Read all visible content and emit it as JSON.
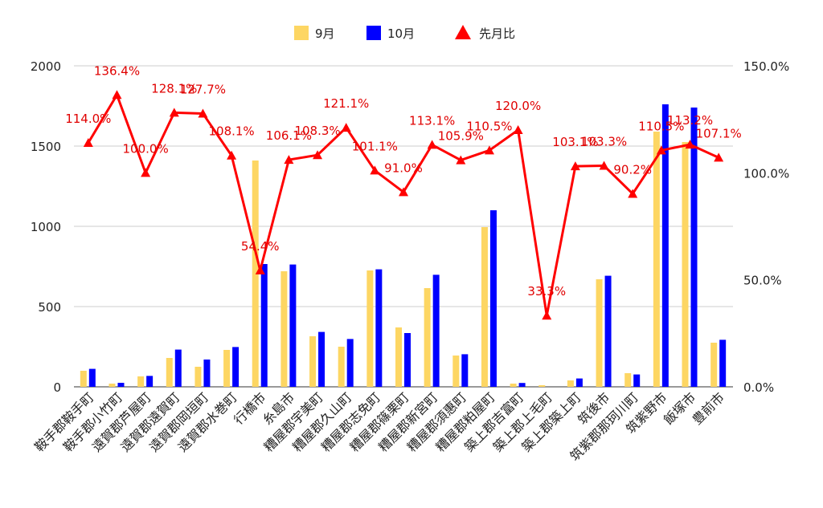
{
  "chart_data": {
    "type": "bar",
    "title": "",
    "xlabel": "",
    "ylabel": "",
    "categories": [
      "鞍手郡鞍手町",
      "鞍手郡小竹町",
      "遠賀郡芦屋町",
      "遠賀郡遠賀町",
      "遠賀郡岡垣町",
      "遠賀郡水巻町",
      "行橋市",
      "糸島市",
      "糟屋郡宇美町",
      "糟屋郡久山町",
      "糟屋郡志免町",
      "糟屋郡篠栗町",
      "糟屋郡新宮町",
      "糟屋郡須惠町",
      "糟屋郡粕屋町",
      "築上郡吉富町",
      "築上郡上毛町",
      "築上郡築上町",
      "筑後市",
      "筑紫郡那珂川町",
      "筑紫野市",
      "飯塚市",
      "豊前市"
    ],
    "series": [
      {
        "name": "9月",
        "type": "bar",
        "axis": "left",
        "color": "#fdd663",
        "values": [
          100,
          20,
          65,
          180,
          125,
          230,
          1410,
          720,
          315,
          250,
          725,
          370,
          615,
          195,
          995,
          20,
          10,
          40,
          670,
          85,
          1590,
          1525,
          275
        ]
      },
      {
        "name": "10月",
        "type": "bar",
        "axis": "left",
        "color": "#0000ff",
        "values": [
          112,
          25,
          68,
          232,
          170,
          248,
          765,
          762,
          342,
          298,
          732,
          335,
          698,
          203,
          1100,
          24,
          0,
          52,
          692,
          77,
          1760,
          1740,
          293
        ]
      },
      {
        "name": "先月比",
        "type": "line",
        "axis": "right",
        "color": "#ff0000",
        "values": [
          114.0,
          136.4,
          100.0,
          128.1,
          127.7,
          108.1,
          54.4,
          106.1,
          108.3,
          121.1,
          101.1,
          91.0,
          113.1,
          105.9,
          110.5,
          120.0,
          33.3,
          103.1,
          103.3,
          90.2,
          110.5,
          113.2,
          107.1
        ],
        "labels": [
          "114.0%",
          "136.4%",
          "100.0%",
          "128.1%",
          "127.7%",
          "108.1%",
          "54.4%",
          "106.1%",
          "108.3%",
          "121.1%",
          "101.1%",
          "91.0%",
          "113.1%",
          "105.9%",
          "110.5%",
          "120.0%",
          "33.3%",
          "103.1%",
          "103.3%",
          "90.2%",
          "110.5%",
          "113.2%",
          "107.1%"
        ]
      }
    ],
    "y_left": {
      "min": 0,
      "max": 2000,
      "ticks": [
        "0",
        "500",
        "1000",
        "1500",
        "2000"
      ]
    },
    "y_right": {
      "min": 0,
      "max": 150,
      "ticks": [
        "0.0%",
        "50.0%",
        "100.0%",
        "150.0%"
      ]
    },
    "grid": true,
    "legend_position": "top"
  }
}
